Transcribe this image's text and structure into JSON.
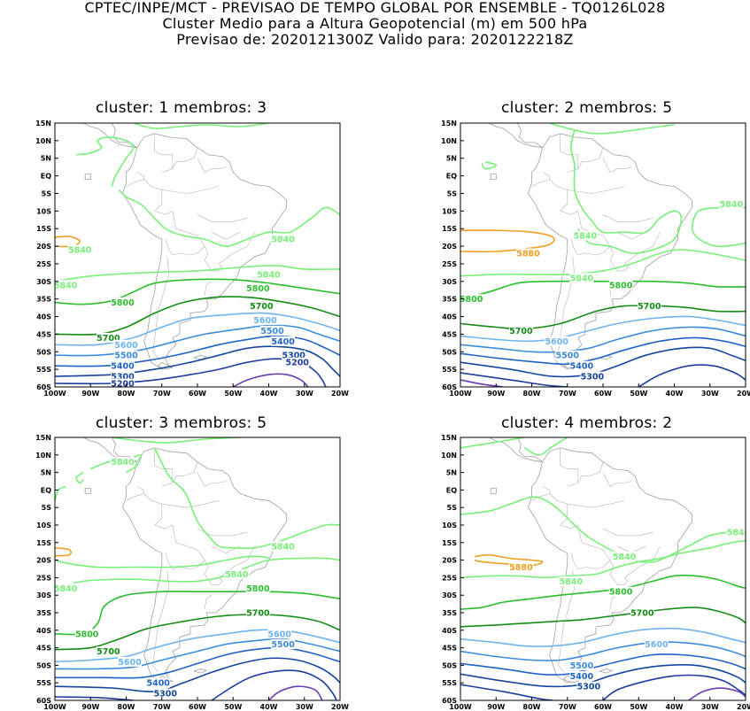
{
  "header": {
    "line1": "CPTEC/INPE/MCT - PREVISAO DE TEMPO GLOBAL POR ENSEMBLE - TQ0126L028",
    "line2": "Cluster Medio para a Altura Geopotencial (m) em 500 hPa",
    "line3": "Previsao de: 2020121300Z    Valido para: 2020122218Z"
  },
  "axes": {
    "lat_labels": [
      "15N",
      "10N",
      "5N",
      "EQ",
      "5S",
      "10S",
      "15S",
      "20S",
      "25S",
      "30S",
      "35S",
      "40S",
      "45S",
      "50S",
      "55S",
      "60S"
    ],
    "lon_labels": [
      "100W",
      "90W",
      "80W",
      "70W",
      "60W",
      "50W",
      "40W",
      "30W",
      "20W"
    ],
    "lat_range": [
      15,
      -60
    ],
    "lon_range": [
      -100,
      -20
    ]
  },
  "colors": {
    "c5880": "#f0a020",
    "c5840": "#78f078",
    "c5800": "#2cbe2c",
    "c5700": "#128c12",
    "c5600": "#6eb4f0",
    "c5500": "#3c8cdc",
    "c5400": "#1e64c8",
    "c5300": "#1446a0",
    "c5200": "#1e3ca0",
    "c5100": "#6a3cb4",
    "coast": "#a0a0a0"
  },
  "panels": [
    {
      "title": "cluster: 1   membros: 3",
      "labels": [
        {
          "text": "5840",
          "lon": -93,
          "lat": -21,
          "level": "c5840"
        },
        {
          "text": "5840",
          "lon": -36,
          "lat": -18,
          "level": "c5840"
        },
        {
          "text": "5840",
          "lon": -97,
          "lat": -31,
          "level": "c5840"
        },
        {
          "text": "5840",
          "lon": -40,
          "lat": -28,
          "level": "c5840"
        },
        {
          "text": "5800",
          "lon": -81,
          "lat": -36,
          "level": "c5800"
        },
        {
          "text": "5800",
          "lon": -43,
          "lat": -32,
          "level": "c5800"
        },
        {
          "text": "5700",
          "lon": -85,
          "lat": -46,
          "level": "c5700"
        },
        {
          "text": "5700",
          "lon": -42,
          "lat": -37,
          "level": "c5700"
        },
        {
          "text": "5600",
          "lon": -80,
          "lat": -48,
          "level": "c5600"
        },
        {
          "text": "5600",
          "lon": -41,
          "lat": -41,
          "level": "c5600"
        },
        {
          "text": "5500",
          "lon": -80,
          "lat": -51,
          "level": "c5500"
        },
        {
          "text": "5500",
          "lon": -39,
          "lat": -44,
          "level": "c5500"
        },
        {
          "text": "5400",
          "lon": -81,
          "lat": -54,
          "level": "c5400"
        },
        {
          "text": "5400",
          "lon": -36,
          "lat": -47,
          "level": "c5400"
        },
        {
          "text": "5300",
          "lon": -81,
          "lat": -57,
          "level": "c5300"
        },
        {
          "text": "5300",
          "lon": -33,
          "lat": -51,
          "level": "c5300"
        },
        {
          "text": "5200",
          "lon": -81,
          "lat": -59,
          "level": "c5200"
        },
        {
          "text": "5200",
          "lon": -32,
          "lat": -53,
          "level": "c5200"
        }
      ]
    },
    {
      "title": "cluster: 2   membros: 5",
      "labels": [
        {
          "text": "5840",
          "lon": -24,
          "lat": -8,
          "level": "c5840"
        },
        {
          "text": "5840",
          "lon": -65,
          "lat": -17,
          "level": "c5840"
        },
        {
          "text": "5880",
          "lon": -81,
          "lat": -22,
          "level": "c5880"
        },
        {
          "text": "5840",
          "lon": -66,
          "lat": -29,
          "level": "c5840"
        },
        {
          "text": "5800",
          "lon": -97,
          "lat": -35,
          "level": "c5800"
        },
        {
          "text": "5800",
          "lon": -55,
          "lat": -31,
          "level": "c5800"
        },
        {
          "text": "5700",
          "lon": -83,
          "lat": -44,
          "level": "c5700"
        },
        {
          "text": "5700",
          "lon": -47,
          "lat": -37,
          "level": "c5700"
        },
        {
          "text": "5600",
          "lon": -73,
          "lat": -47,
          "level": "c5600"
        },
        {
          "text": "5500",
          "lon": -70,
          "lat": -51,
          "level": "c5500"
        },
        {
          "text": "5400",
          "lon": -66,
          "lat": -54,
          "level": "c5400"
        },
        {
          "text": "5300",
          "lon": -63,
          "lat": -57,
          "level": "c5300"
        }
      ]
    },
    {
      "title": "cluster: 3   membros: 5",
      "labels": [
        {
          "text": "5840",
          "lon": -81,
          "lat": 8,
          "level": "c5840"
        },
        {
          "text": "5840",
          "lon": -36,
          "lat": -16,
          "level": "c5840"
        },
        {
          "text": "5840",
          "lon": -49,
          "lat": -24,
          "level": "c5840"
        },
        {
          "text": "5840",
          "lon": -97,
          "lat": -28,
          "level": "c5840"
        },
        {
          "text": "5800",
          "lon": -43,
          "lat": -28,
          "level": "c5800"
        },
        {
          "text": "5800",
          "lon": -91,
          "lat": -41,
          "level": "c5800"
        },
        {
          "text": "5700",
          "lon": -85,
          "lat": -46,
          "level": "c5700"
        },
        {
          "text": "5700",
          "lon": -43,
          "lat": -35,
          "level": "c5700"
        },
        {
          "text": "5600",
          "lon": -79,
          "lat": -49,
          "level": "c5600"
        },
        {
          "text": "5600",
          "lon": -37,
          "lat": -41,
          "level": "c5600"
        },
        {
          "text": "5500",
          "lon": -36,
          "lat": -44,
          "level": "c5500"
        },
        {
          "text": "5400",
          "lon": -71,
          "lat": -55,
          "level": "c5400"
        },
        {
          "text": "5300",
          "lon": -69,
          "lat": -58,
          "level": "c5300"
        }
      ]
    },
    {
      "title": "cluster: 4   membros: 2",
      "labels": [
        {
          "text": "5840",
          "lon": -22,
          "lat": -12,
          "level": "c5840"
        },
        {
          "text": "5840",
          "lon": -54,
          "lat": -19,
          "level": "c5840"
        },
        {
          "text": "5880",
          "lon": -83,
          "lat": -22,
          "level": "c5880"
        },
        {
          "text": "5840",
          "lon": -69,
          "lat": -26,
          "level": "c5840"
        },
        {
          "text": "5800",
          "lon": -55,
          "lat": -29,
          "level": "c5800"
        },
        {
          "text": "5700",
          "lon": -49,
          "lat": -35,
          "level": "c5700"
        },
        {
          "text": "5600",
          "lon": -45,
          "lat": -44,
          "level": "c5600"
        },
        {
          "text": "5500",
          "lon": -66,
          "lat": -50,
          "level": "c5500"
        },
        {
          "text": "5400",
          "lon": -66,
          "lat": -53,
          "level": "c5400"
        },
        {
          "text": "5300",
          "lon": -64,
          "lat": -56,
          "level": "c5300"
        }
      ]
    }
  ]
}
